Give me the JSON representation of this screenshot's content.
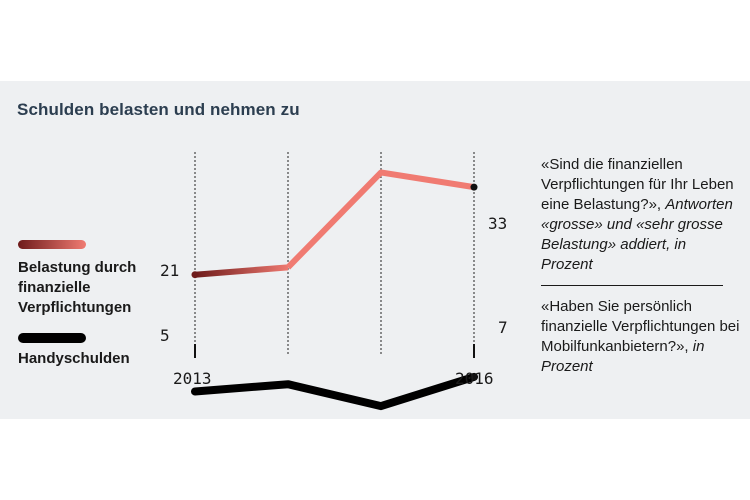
{
  "title": "Schulden belasten und nehmen zu",
  "colors": {
    "panel": "#eef0f2",
    "belastung_light": "#f07b72",
    "belastung_dark": "#6e1b1b",
    "handy": "#000000"
  },
  "chart_data": {
    "type": "line",
    "x": [
      2013,
      2014,
      2015,
      2016
    ],
    "ylim": [
      0,
      40
    ],
    "tick_labels": [
      "2013",
      "2016"
    ],
    "series": [
      {
        "name": "Belastung durch finanzielle Verpflichtungen",
        "values": [
          21,
          22,
          35,
          33
        ],
        "start_label": "21",
        "end_label": "33"
      },
      {
        "name": "Handyschulden",
        "values": [
          5,
          6,
          3,
          7
        ],
        "start_label": "5",
        "end_label": "7"
      }
    ],
    "legend": [
      {
        "label": "Belastung durch finanzielle Verpflichtungen"
      },
      {
        "label": "Handyschulden"
      }
    ]
  },
  "notes": {
    "first_plain": "«Sind die finanziellen Verpflichtungen für Ihr Leben eine Belastung?»,",
    "first_italic": "Antworten «grosse» und «sehr grosse Belastung» addiert, in Prozent",
    "second_plain": "«Haben Sie persönlich finanzielle Verpflichtungen bei Mobilfunkanbietern?»,",
    "second_italic": "in Prozent"
  }
}
